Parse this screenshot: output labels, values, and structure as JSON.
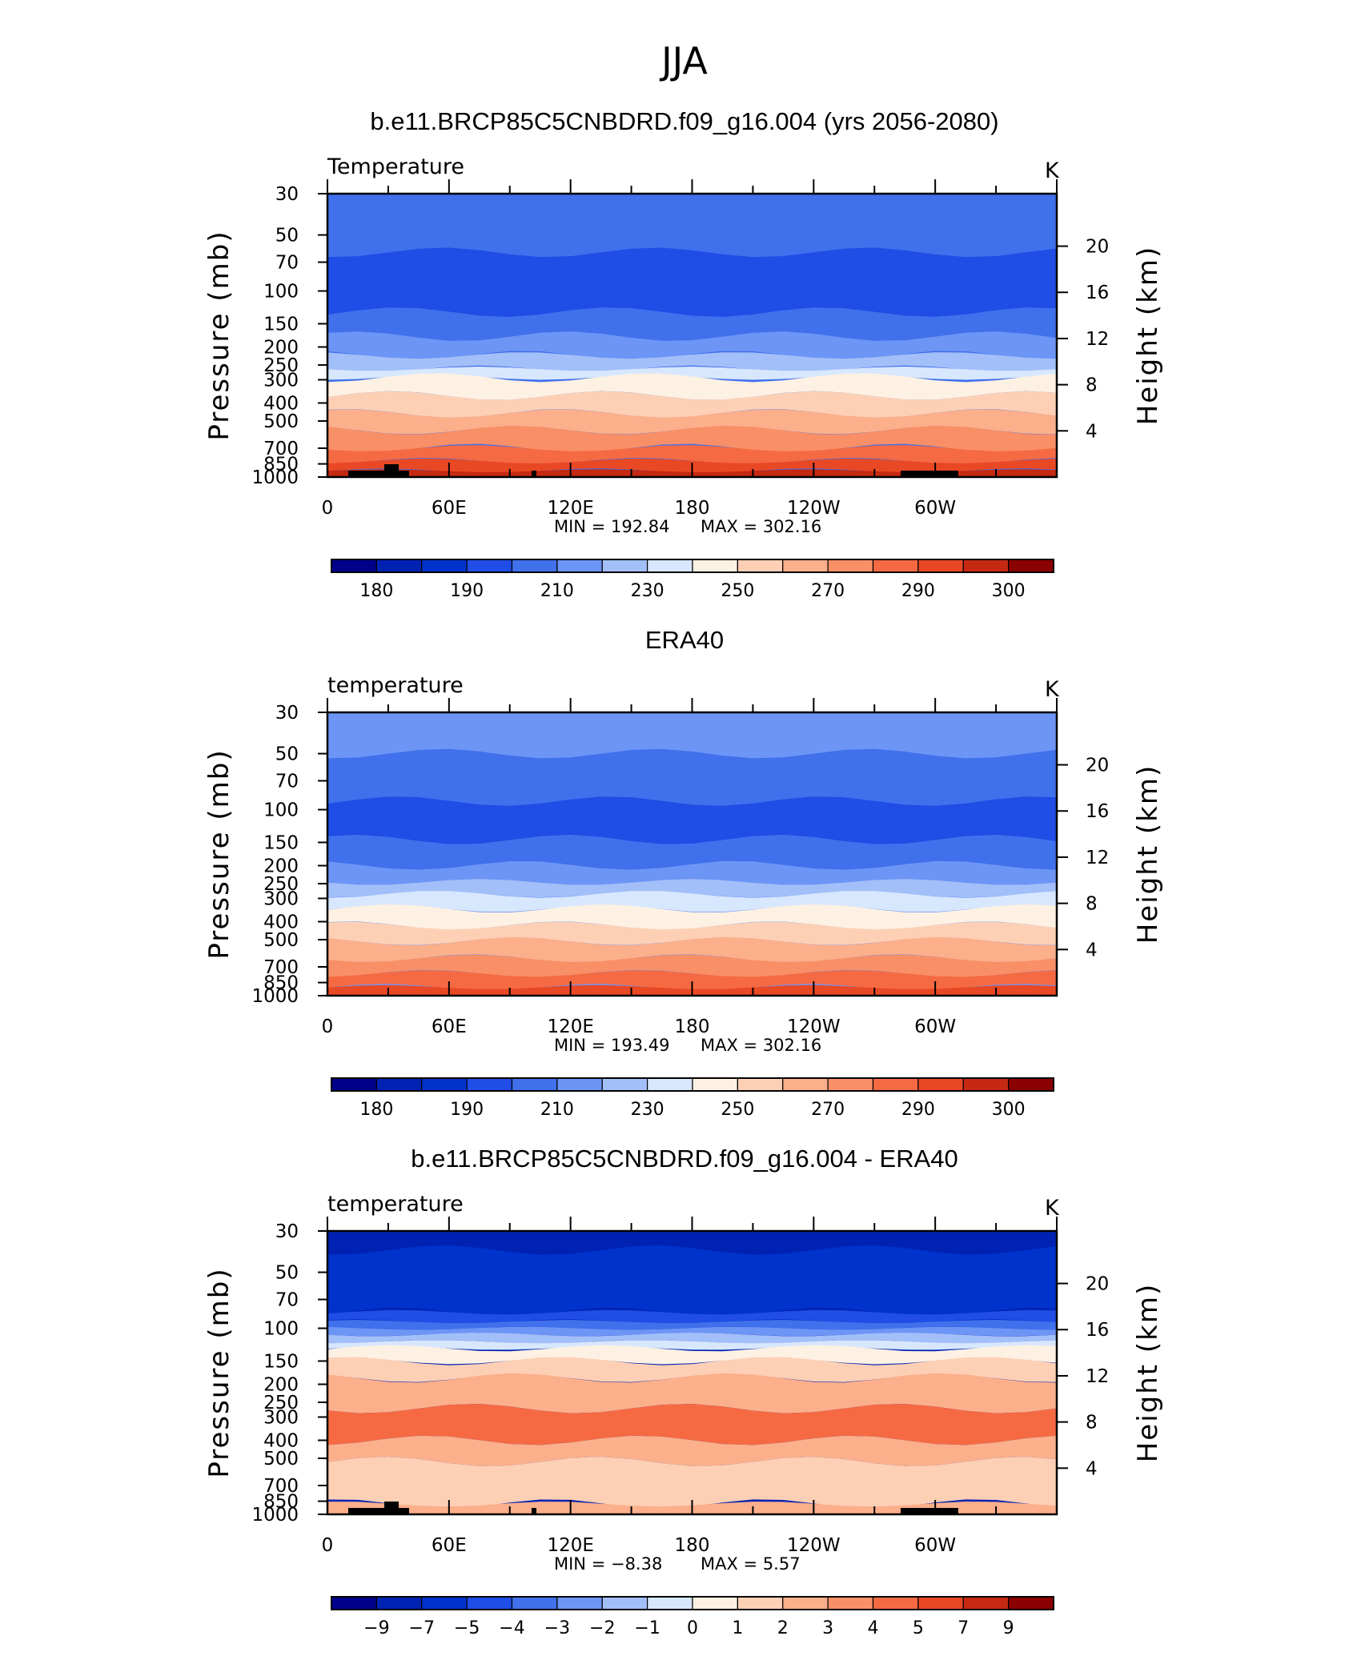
{
  "figure_title": "JJA",
  "colormap": [
    "#00008b",
    "#0022b3",
    "#0033cc",
    "#1f4de6",
    "#4170ec",
    "#6d95f5",
    "#a3bff9",
    "#d7e7fd",
    "#fdf1e3",
    "#fdd0b6",
    "#fcaf8b",
    "#f98f66",
    "#f56a43",
    "#e94824",
    "#c52912",
    "#8b0000"
  ],
  "chart_data": [
    {
      "type": "heatmap",
      "title": "b.e11.BRCP85C5CNBDRD.f09_g16.004 (yrs 2056-2080)",
      "left_label": "Temperature",
      "right_label": "K",
      "ylabel": "Pressure (mb)",
      "y2label": "Height (km)",
      "x_ticks": [
        "0",
        "60E",
        "120E",
        "180",
        "120W",
        "60W"
      ],
      "y_ticks": [
        "30",
        "50",
        "70",
        "100",
        "150",
        "200",
        "250",
        "300",
        "400",
        "500",
        "700",
        "850",
        "1000"
      ],
      "y2_ticks": [
        "20",
        "16",
        "12",
        "8",
        "4"
      ],
      "min_label": "MIN = 192.84",
      "max_label": "MAX = 302.16",
      "min": 192.84,
      "max": 302.16,
      "colorbar_labels": [
        "180",
        "190",
        "210",
        "230",
        "250",
        "270",
        "290",
        "300"
      ],
      "bands_top_to_bottom": [
        {
          "level": 4,
          "from_mb": 30,
          "to_mb": 62
        },
        {
          "level": 3,
          "from_mb": 62,
          "to_mb": 130
        },
        {
          "level": 4,
          "from_mb": 130,
          "to_mb": 175
        },
        {
          "level": 5,
          "from_mb": 175,
          "to_mb": 222
        },
        {
          "level": 6,
          "from_mb": 222,
          "to_mb": 262
        },
        {
          "level": 7,
          "from_mb": 262,
          "to_mb": 292
        },
        {
          "level": 8,
          "from_mb": 292,
          "to_mb": 365
        },
        {
          "level": 9,
          "from_mb": 365,
          "to_mb": 455
        },
        {
          "level": 10,
          "from_mb": 455,
          "to_mb": 560
        },
        {
          "level": 11,
          "from_mb": 560,
          "to_mb": 700
        },
        {
          "level": 12,
          "from_mb": 700,
          "to_mb": 820
        },
        {
          "level": 13,
          "from_mb": 820,
          "to_mb": 925
        },
        {
          "level": 14,
          "from_mb": 925,
          "to_mb": 1000
        }
      ]
    },
    {
      "type": "heatmap",
      "title": "ERA40",
      "left_label": "temperature",
      "right_label": "K",
      "ylabel": "Pressure (mb)",
      "y2label": "Height (km)",
      "x_ticks": [
        "0",
        "60E",
        "120E",
        "180",
        "120W",
        "60W"
      ],
      "y_ticks": [
        "30",
        "50",
        "70",
        "100",
        "150",
        "200",
        "250",
        "300",
        "400",
        "500",
        "700",
        "850",
        "1000"
      ],
      "y2_ticks": [
        "20",
        "16",
        "12",
        "8",
        "4"
      ],
      "min_label": "MIN = 193.49",
      "max_label": "MAX = 302.16",
      "min": 193.49,
      "max": 302.16,
      "colorbar_labels": [
        "180",
        "190",
        "210",
        "230",
        "250",
        "270",
        "290",
        "300"
      ],
      "bands_top_to_bottom": [
        {
          "level": 5,
          "from_mb": 30,
          "to_mb": 50
        },
        {
          "level": 4,
          "from_mb": 50,
          "to_mb": 90
        },
        {
          "level": 3,
          "from_mb": 90,
          "to_mb": 145
        },
        {
          "level": 4,
          "from_mb": 145,
          "to_mb": 200
        },
        {
          "level": 5,
          "from_mb": 200,
          "to_mb": 245
        },
        {
          "level": 6,
          "from_mb": 245,
          "to_mb": 285
        },
        {
          "level": 7,
          "from_mb": 285,
          "to_mb": 340
        },
        {
          "level": 8,
          "from_mb": 340,
          "to_mb": 420
        },
        {
          "level": 9,
          "from_mb": 420,
          "to_mb": 510
        },
        {
          "level": 10,
          "from_mb": 510,
          "to_mb": 630
        },
        {
          "level": 11,
          "from_mb": 630,
          "to_mb": 760
        },
        {
          "level": 12,
          "from_mb": 760,
          "to_mb": 900
        },
        {
          "level": 13,
          "from_mb": 900,
          "to_mb": 1000
        }
      ]
    },
    {
      "type": "heatmap",
      "title": "b.e11.BRCP85C5CNBDRD.f09_g16.004 - ERA40",
      "left_label": "temperature",
      "right_label": "K",
      "ylabel": "Pressure (mb)",
      "y2label": "Height (km)",
      "x_ticks": [
        "0",
        "60E",
        "120E",
        "180",
        "120W",
        "60W"
      ],
      "y_ticks": [
        "30",
        "50",
        "70",
        "100",
        "150",
        "200",
        "250",
        "300",
        "400",
        "500",
        "700",
        "850",
        "1000"
      ],
      "y2_ticks": [
        "20",
        "16",
        "12",
        "8",
        "4"
      ],
      "min_label": "MIN = −8.38",
      "max_label": "MAX = 5.57",
      "min": -8.38,
      "max": 5.57,
      "colorbar_labels": [
        "−9",
        "−7",
        "−5",
        "−4",
        "−3",
        "−2",
        "−1",
        "0",
        "1",
        "2",
        "3",
        "4",
        "5",
        "7",
        "9"
      ],
      "bands_top_to_bottom": [
        {
          "level": 1,
          "from_mb": 30,
          "to_mb": 38
        },
        {
          "level": 2,
          "from_mb": 38,
          "to_mb": 82
        },
        {
          "level": 3,
          "from_mb": 82,
          "to_mb": 92
        },
        {
          "level": 4,
          "from_mb": 92,
          "to_mb": 100
        },
        {
          "level": 5,
          "from_mb": 100,
          "to_mb": 108
        },
        {
          "level": 6,
          "from_mb": 108,
          "to_mb": 118
        },
        {
          "level": 7,
          "from_mb": 118,
          "to_mb": 128
        },
        {
          "level": 8,
          "from_mb": 128,
          "to_mb": 150
        },
        {
          "level": 9,
          "from_mb": 150,
          "to_mb": 185
        },
        {
          "level": 10,
          "from_mb": 185,
          "to_mb": 270
        },
        {
          "level": 12,
          "from_mb": 270,
          "to_mb": 400
        },
        {
          "level": 10,
          "from_mb": 400,
          "to_mb": 520
        },
        {
          "level": 9,
          "from_mb": 520,
          "to_mb": 880
        },
        {
          "level": 10,
          "from_mb": 880,
          "to_mb": 1000
        }
      ]
    }
  ]
}
